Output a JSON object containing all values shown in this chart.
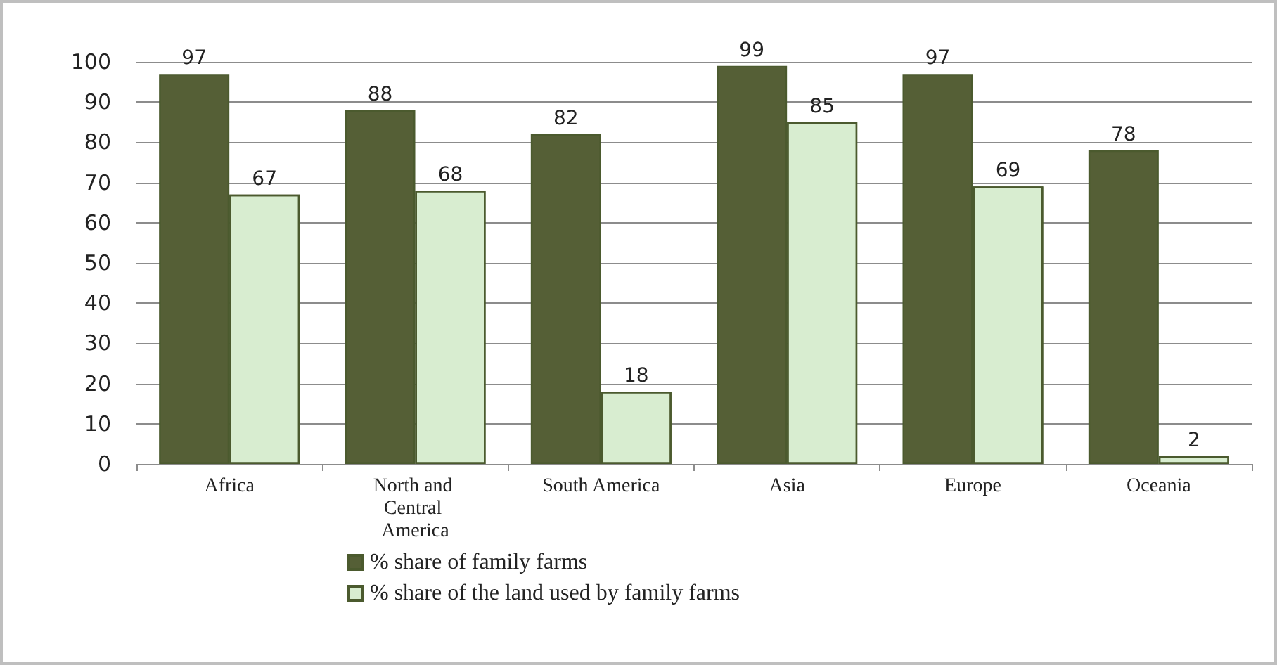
{
  "chart_data": {
    "type": "bar",
    "categories": [
      "Africa",
      "North and Central America",
      "South America",
      "Asia",
      "Europe",
      "Oceania"
    ],
    "series": [
      {
        "name": "% share of family farms",
        "color": "#555f36",
        "values": [
          97,
          88,
          82,
          99,
          97,
          78
        ]
      },
      {
        "name": "% share of the land used by family farms",
        "color": "#d8edd0",
        "values": [
          67,
          68,
          18,
          85,
          69,
          2
        ]
      }
    ],
    "ylim": [
      0,
      100
    ],
    "yticks": [
      0,
      10,
      20,
      30,
      40,
      50,
      60,
      70,
      80,
      90,
      100
    ],
    "grid": "y",
    "legend": "bottom",
    "data_labels": true
  }
}
